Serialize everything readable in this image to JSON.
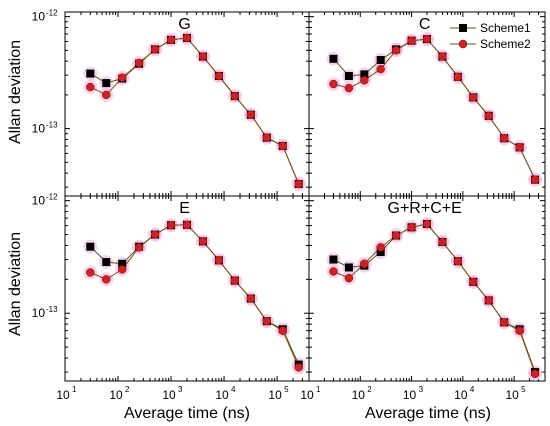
{
  "figure": {
    "ylabel": "Allan deviation",
    "xlabel": "Average time (ns)",
    "ytick_exponents": {
      "top": "-12",
      "bottom": "-13"
    },
    "xtick_labels": [
      {
        "base": "10",
        "exp": "1"
      },
      {
        "base": "10",
        "exp": "2"
      },
      {
        "base": "10",
        "exp": "3"
      },
      {
        "base": "10",
        "exp": "4"
      },
      {
        "base": "10",
        "exp": "5"
      }
    ],
    "legend": [
      "Scheme1",
      "Scheme2"
    ]
  },
  "chart_data": [
    {
      "type": "line",
      "title": "G",
      "xscale": "log",
      "yscale": "log",
      "xlim": [
        10,
        400000
      ],
      "ylim": [
        2.5e-14,
        1.1e-12
      ],
      "x": [
        30,
        60,
        120,
        250,
        500,
        1000,
        2000,
        4000,
        8000,
        16000,
        32000,
        64000,
        128000,
        256000
      ],
      "series": [
        {
          "name": "Scheme1",
          "color": "#000000",
          "marker": "square",
          "values": [
            3.1e-13,
            2.55e-13,
            2.8e-13,
            3.8e-13,
            5.1e-13,
            6.2e-13,
            6.45e-13,
            4.4e-13,
            2.95e-13,
            1.95e-13,
            1.33e-13,
            8.3e-14,
            7e-14,
            3.2e-14
          ]
        },
        {
          "name": "Scheme2",
          "color": "#cc2222",
          "marker": "circle",
          "values": [
            2.35e-13,
            2e-13,
            2.85e-13,
            3.85e-13,
            5.1e-13,
            6.2e-13,
            6.45e-13,
            4.4e-13,
            2.95e-13,
            1.95e-13,
            1.33e-13,
            8.3e-14,
            7e-14,
            3.2e-14
          ]
        }
      ]
    },
    {
      "type": "line",
      "title": "C",
      "xscale": "log",
      "yscale": "log",
      "xlim": [
        10,
        400000
      ],
      "ylim": [
        2.5e-14,
        1.1e-12
      ],
      "x": [
        30,
        60,
        120,
        250,
        500,
        1000,
        2000,
        4000,
        8000,
        16000,
        32000,
        64000,
        128000,
        256000
      ],
      "series": [
        {
          "name": "Scheme1",
          "color": "#000000",
          "marker": "square",
          "values": [
            4.2e-13,
            2.95e-13,
            3.05e-13,
            4.1e-13,
            5.1e-13,
            6.1e-13,
            6.3e-13,
            4.4e-13,
            2.9e-13,
            1.9e-13,
            1.3e-13,
            8.2e-14,
            6.8e-14,
            3.5e-14
          ]
        },
        {
          "name": "Scheme2",
          "color": "#cc2222",
          "marker": "circle",
          "values": [
            2.5e-13,
            2.3e-13,
            2.7e-13,
            3.4e-13,
            5e-13,
            6.1e-13,
            6.3e-13,
            4.4e-13,
            2.9e-13,
            1.9e-13,
            1.3e-13,
            8.2e-14,
            6.8e-14,
            3.5e-14
          ]
        }
      ]
    },
    {
      "type": "line",
      "title": "E",
      "xscale": "log",
      "yscale": "log",
      "xlim": [
        10,
        400000
      ],
      "ylim": [
        2.5e-14,
        1.1e-12
      ],
      "x": [
        30,
        60,
        120,
        250,
        500,
        1000,
        2000,
        4000,
        8000,
        16000,
        32000,
        64000,
        128000,
        256000
      ],
      "series": [
        {
          "name": "Scheme1",
          "color": "#000000",
          "marker": "square",
          "values": [
            3.9e-13,
            2.85e-13,
            2.75e-13,
            3.9e-13,
            5e-13,
            6.05e-13,
            6.1e-13,
            4.35e-13,
            2.95e-13,
            1.95e-13,
            1.35e-13,
            8.5e-14,
            7.2e-14,
            3.5e-14
          ]
        },
        {
          "name": "Scheme2",
          "color": "#cc2222",
          "marker": "circle",
          "values": [
            2.3e-13,
            2e-13,
            2.45e-13,
            3.85e-13,
            5e-13,
            6.05e-13,
            6.1e-13,
            4.35e-13,
            2.95e-13,
            1.95e-13,
            1.35e-13,
            8.5e-14,
            7e-14,
            3.3e-14
          ]
        }
      ]
    },
    {
      "type": "line",
      "title": "G+R+C+E",
      "xscale": "log",
      "yscale": "log",
      "xlim": [
        10,
        400000
      ],
      "ylim": [
        2.5e-14,
        1.1e-12
      ],
      "x": [
        30,
        60,
        120,
        250,
        500,
        1000,
        2000,
        4000,
        8000,
        16000,
        32000,
        64000,
        128000,
        256000
      ],
      "series": [
        {
          "name": "Scheme1",
          "color": "#000000",
          "marker": "square",
          "values": [
            3e-13,
            2.55e-13,
            2.65e-13,
            3.5e-13,
            4.9e-13,
            5.8e-13,
            6.2e-13,
            4.3e-13,
            2.9e-13,
            1.9e-13,
            1.3e-13,
            8.3e-14,
            7.2e-14,
            3e-14
          ]
        },
        {
          "name": "Scheme2",
          "color": "#cc2222",
          "marker": "circle",
          "values": [
            2.35e-13,
            2.05e-13,
            2.75e-13,
            3.85e-13,
            4.9e-13,
            5.8e-13,
            6.2e-13,
            4.3e-13,
            2.9e-13,
            1.9e-13,
            1.3e-13,
            8.3e-14,
            7e-14,
            2.9e-14
          ]
        }
      ]
    }
  ]
}
